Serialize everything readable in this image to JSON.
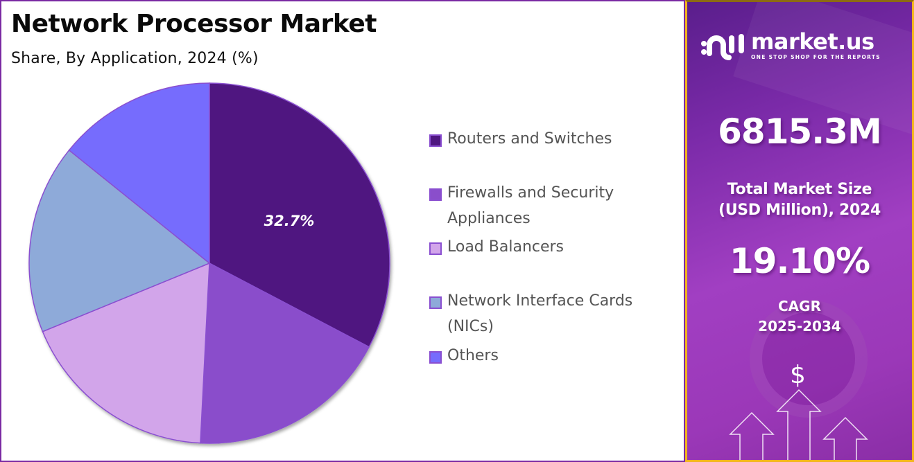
{
  "left": {
    "title": "Network Processor Market",
    "subtitle": "Share, By Application, 2024 (%)"
  },
  "legend": [
    {
      "label": "Routers and Switches",
      "color": "#4f1780"
    },
    {
      "label": "Firewalls and Security Appliances",
      "color": "#8a4ecb"
    },
    {
      "label": "Load Balancers",
      "color": "#d2a5ea"
    },
    {
      "label": "Network Interface Cards (NICs)",
      "color": "#8eaad9"
    },
    {
      "label": "Others",
      "color": "#766cfd"
    }
  ],
  "pie_label": "32.7%",
  "right": {
    "logo_name": "market.us",
    "logo_tagline": "ONE STOP SHOP FOR THE REPORTS",
    "market_size_value": "6815.3M",
    "market_size_label_line1": "Total Market Size",
    "market_size_label_line2": "(USD Million), 2024",
    "cagr_value": "19.10%",
    "cagr_label_line1": "CAGR",
    "cagr_label_line2": "2025-2034",
    "dollar_symbol": "$"
  },
  "colors": {
    "left_border": "#7a2aa3",
    "right_border": "#f2b51d",
    "slice_stroke": "#8a4fd0"
  },
  "chart_data": {
    "type": "pie",
    "title": "Network Processor Market",
    "subtitle": "Share, By Application, 2024 (%)",
    "categories": [
      "Routers and Switches",
      "Firewalls and Security Appliances",
      "Load Balancers",
      "Network Interface Cards (NICs)",
      "Others"
    ],
    "values": [
      32.7,
      18.1,
      18.0,
      17.0,
      14.2
    ],
    "labeled_values": {
      "Routers and Switches": 32.7
    },
    "colors": [
      "#4f1780",
      "#8a4ecb",
      "#d2a5ea",
      "#8eaad9",
      "#766cfd"
    ],
    "start_angle": "12 o'clock, clockwise",
    "legend_position": "right",
    "units": "%"
  }
}
